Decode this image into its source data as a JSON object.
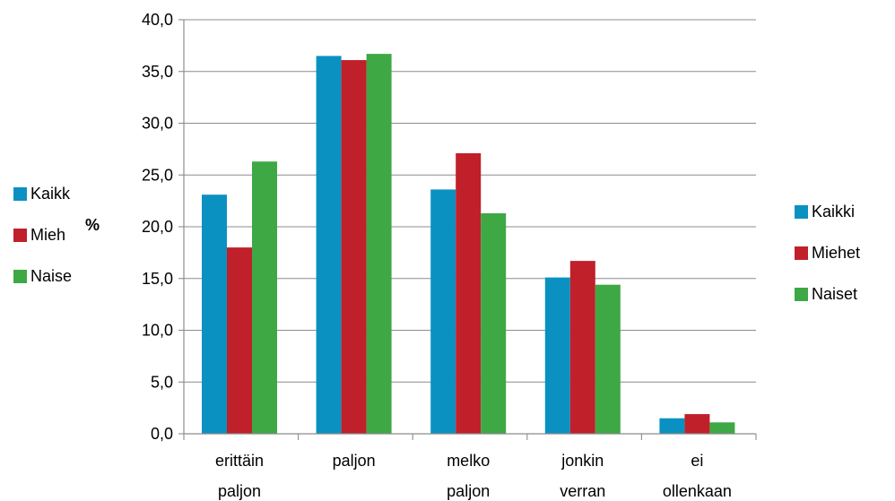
{
  "chart_data": {
    "type": "bar",
    "ylabel": "%",
    "ylim": [
      0,
      40
    ],
    "yticks": [
      "0,0",
      "5,0",
      "10,0",
      "15,0",
      "20,0",
      "25,0",
      "30,0",
      "35,0",
      "40,0"
    ],
    "categories": [
      [
        "erittäin",
        "paljon"
      ],
      [
        "paljon"
      ],
      [
        "melko",
        "paljon"
      ],
      [
        "jonkin",
        "verran"
      ],
      [
        "ei",
        "ollenkaan"
      ]
    ],
    "series": [
      {
        "name": "Kaikki",
        "color": "#0a91c1",
        "values": [
          23.1,
          36.5,
          23.6,
          15.1,
          1.5
        ]
      },
      {
        "name": "Miehet",
        "color": "#c0202a",
        "values": [
          18.0,
          36.1,
          27.1,
          16.7,
          1.9
        ]
      },
      {
        "name": "Naiset",
        "color": "#3ea844",
        "values": [
          26.3,
          36.7,
          21.3,
          14.4,
          1.1
        ]
      }
    ],
    "grid": true,
    "legend": [
      {
        "placement": "left",
        "labels": [
          "Kaikk",
          "Mieh",
          "Naise"
        ]
      },
      {
        "placement": "right",
        "labels": [
          "Kaikki",
          "Miehet",
          "Naiset"
        ]
      }
    ]
  }
}
